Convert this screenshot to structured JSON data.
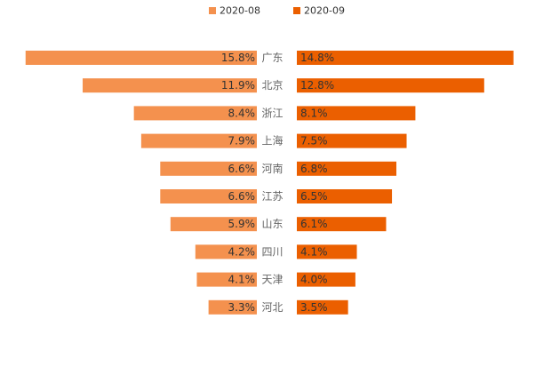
{
  "chart_data": {
    "type": "bar",
    "orientation": "horizontal",
    "layout": "butterfly",
    "categories": [
      "广东",
      "北京",
      "浙江",
      "上海",
      "河南",
      "江苏",
      "山东",
      "四川",
      "天津",
      "河北"
    ],
    "series": [
      {
        "name": "2020-08",
        "color": "#F4914E",
        "values": [
          15.8,
          11.9,
          8.4,
          7.9,
          6.6,
          6.6,
          5.9,
          4.2,
          4.1,
          3.3
        ],
        "labels": [
          "15.8%",
          "11.9%",
          "8.4%",
          "7.9%",
          "6.6%",
          "6.6%",
          "5.9%",
          "4.2%",
          "4.1%",
          "3.3%"
        ]
      },
      {
        "name": "2020-09",
        "color": "#EB5F00",
        "values": [
          14.8,
          12.8,
          8.1,
          7.5,
          6.8,
          6.5,
          6.1,
          4.1,
          4.0,
          3.5
        ],
        "labels": [
          "14.8%",
          "12.8%",
          "8.1%",
          "7.5%",
          "6.8%",
          "6.5%",
          "6.1%",
          "4.1%",
          "4.0%",
          "3.5%"
        ]
      }
    ],
    "value_unit": "%",
    "legend_position": "top-center",
    "grid": false
  }
}
